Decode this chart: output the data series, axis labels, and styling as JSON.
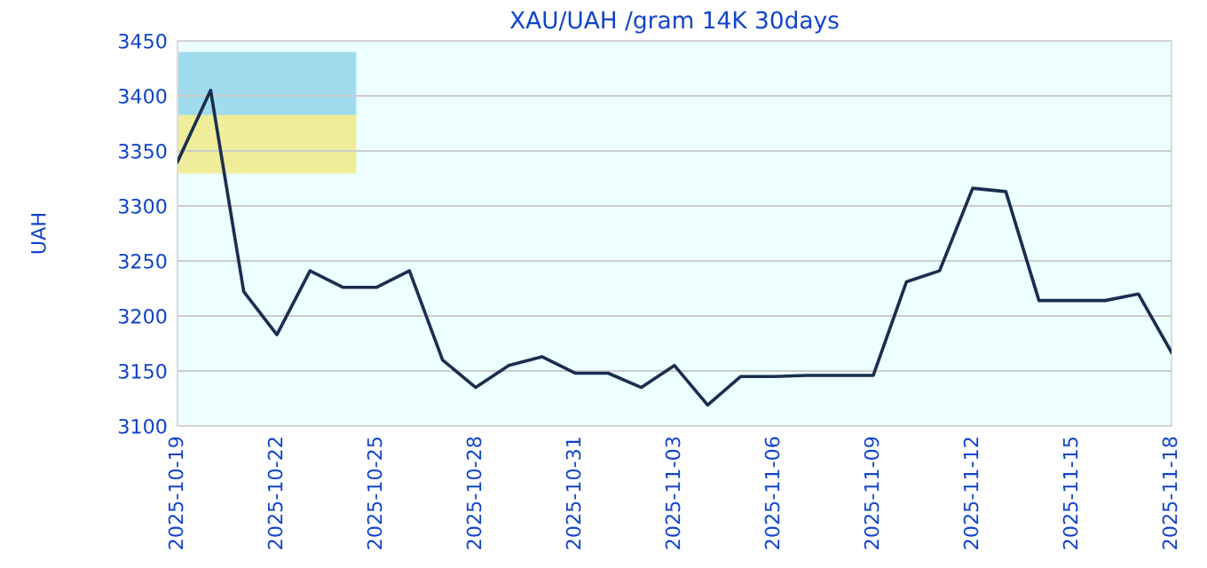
{
  "chart_data": {
    "type": "line",
    "title": "XAU/UAH /gram 14K 30days",
    "ylabel": "UAH",
    "x": [
      "2025-10-19",
      "2025-10-20",
      "2025-10-21",
      "2025-10-22",
      "2025-10-23",
      "2025-10-24",
      "2025-10-25",
      "2025-10-26",
      "2025-10-27",
      "2025-10-28",
      "2025-10-29",
      "2025-10-30",
      "2025-10-31",
      "2025-11-01",
      "2025-11-02",
      "2025-11-03",
      "2025-11-04",
      "2025-11-05",
      "2025-11-06",
      "2025-11-07",
      "2025-11-08",
      "2025-11-09",
      "2025-11-10",
      "2025-11-11",
      "2025-11-12",
      "2025-11-13",
      "2025-11-14",
      "2025-11-15",
      "2025-11-16",
      "2025-11-17",
      "2025-11-18"
    ],
    "series": [
      {
        "color": "#1a2e50",
        "values": [
          3340,
          3405,
          3222,
          3183,
          3241,
          3226,
          3226,
          3241,
          3160,
          3135,
          3155,
          3163,
          3148,
          3148,
          3135,
          3155,
          3119,
          3145,
          3145,
          3146,
          3146,
          3146,
          3231,
          3241,
          3316,
          3313,
          3214,
          3214,
          3214,
          3220,
          3167
        ]
      }
    ],
    "xlim": [
      "2025-10-19",
      "2025-11-18"
    ],
    "xticks": [
      "2025-10-19",
      "2025-10-22",
      "2025-10-25",
      "2025-10-28",
      "2025-10-31",
      "2025-11-03",
      "2025-11-06",
      "2025-11-09",
      "2025-11-12",
      "2025-11-15",
      "2025-11-18"
    ],
    "ylim": [
      3100,
      3450
    ],
    "yticks": [
      3100,
      3150,
      3200,
      3250,
      3300,
      3350,
      3400,
      3450
    ],
    "grid": "y",
    "legend": false,
    "marker": "none",
    "line_style": "solid"
  }
}
